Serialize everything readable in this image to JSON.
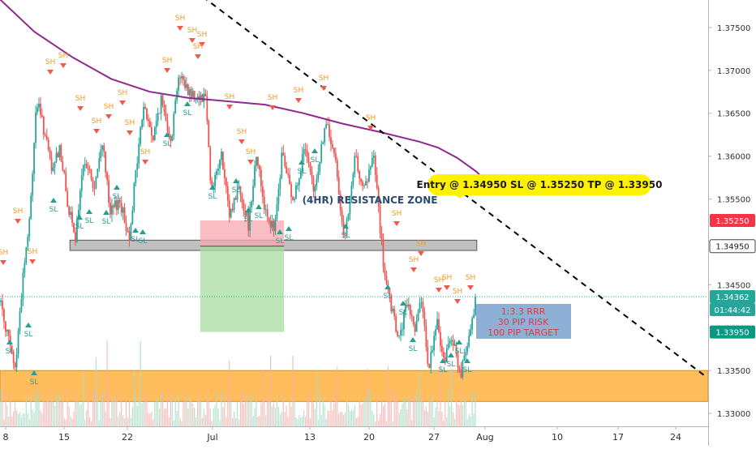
{
  "chart_data": {
    "type": "candlestick",
    "instrument_hint": "",
    "x_axis_labels": [
      "8",
      "15",
      "22",
      "Jul",
      "13",
      "20",
      "27",
      "Aug",
      "10",
      "17",
      "24"
    ],
    "y_axis": {
      "ticks": [
        "1.37500",
        "1.37000",
        "1.36500",
        "1.36000",
        "1.35500",
        "1.35000",
        "1.34500",
        "1.34000",
        "1.33500",
        "1.33000"
      ],
      "ylim": [
        1.3285,
        1.3782
      ]
    },
    "price_tags": {
      "stop_loss": {
        "value": "1.35250",
        "color": "#f23645"
      },
      "entry": {
        "value": "1.34950",
        "color": "#ffffff"
      },
      "current": {
        "value": "1.34362",
        "color": "#26a69a"
      },
      "countdown": "01:44:42",
      "take_profit": {
        "value": "1.33950",
        "color": "#089981"
      }
    },
    "annotations": {
      "trade_callout": "Entry @ 1.34950 SL @ 1.35250 TP @ 1.33950",
      "resistance_label": "(4HR) RESISTANCE ZONE",
      "rrr_lines": [
        "1:3.3 RRR",
        "30 PIP RISK",
        "100 PIP TARGET"
      ],
      "swing_high_label": "SH",
      "swing_low_label": "SL"
    },
    "zones": {
      "resistance": [
        1.349,
        1.3502
      ],
      "support": [
        1.3314,
        1.335
      ]
    },
    "trade": {
      "entry": 1.3495,
      "stop": 1.3525,
      "target": 1.3395
    },
    "moving_average": {
      "color": "#8e2a8e",
      "points": [
        [
          0.3,
          1.3784
        ],
        [
          4,
          1.3745
        ],
        [
          8,
          1.3715
        ],
        [
          12,
          1.369
        ],
        [
          16,
          1.3675
        ],
        [
          20,
          1.3668
        ],
        [
          24,
          1.3664
        ],
        [
          28,
          1.366
        ],
        [
          32,
          1.365
        ],
        [
          36,
          1.3638
        ],
        [
          40,
          1.3628
        ],
        [
          44,
          1.3617
        ],
        [
          46,
          1.361
        ],
        [
          48,
          1.3598
        ],
        [
          50,
          1.3582
        ],
        [
          52,
          1.356
        ]
      ]
    },
    "trendline": {
      "from": [
        21.5,
        1.379
      ],
      "to": [
        75.5,
        1.33
      ]
    },
    "colors": {
      "up": "#26a69a",
      "down": "#ef5350",
      "sh_marker": "#f05a4a",
      "sl_marker": "#2a9d8f",
      "callout": "#fff200"
    }
  }
}
